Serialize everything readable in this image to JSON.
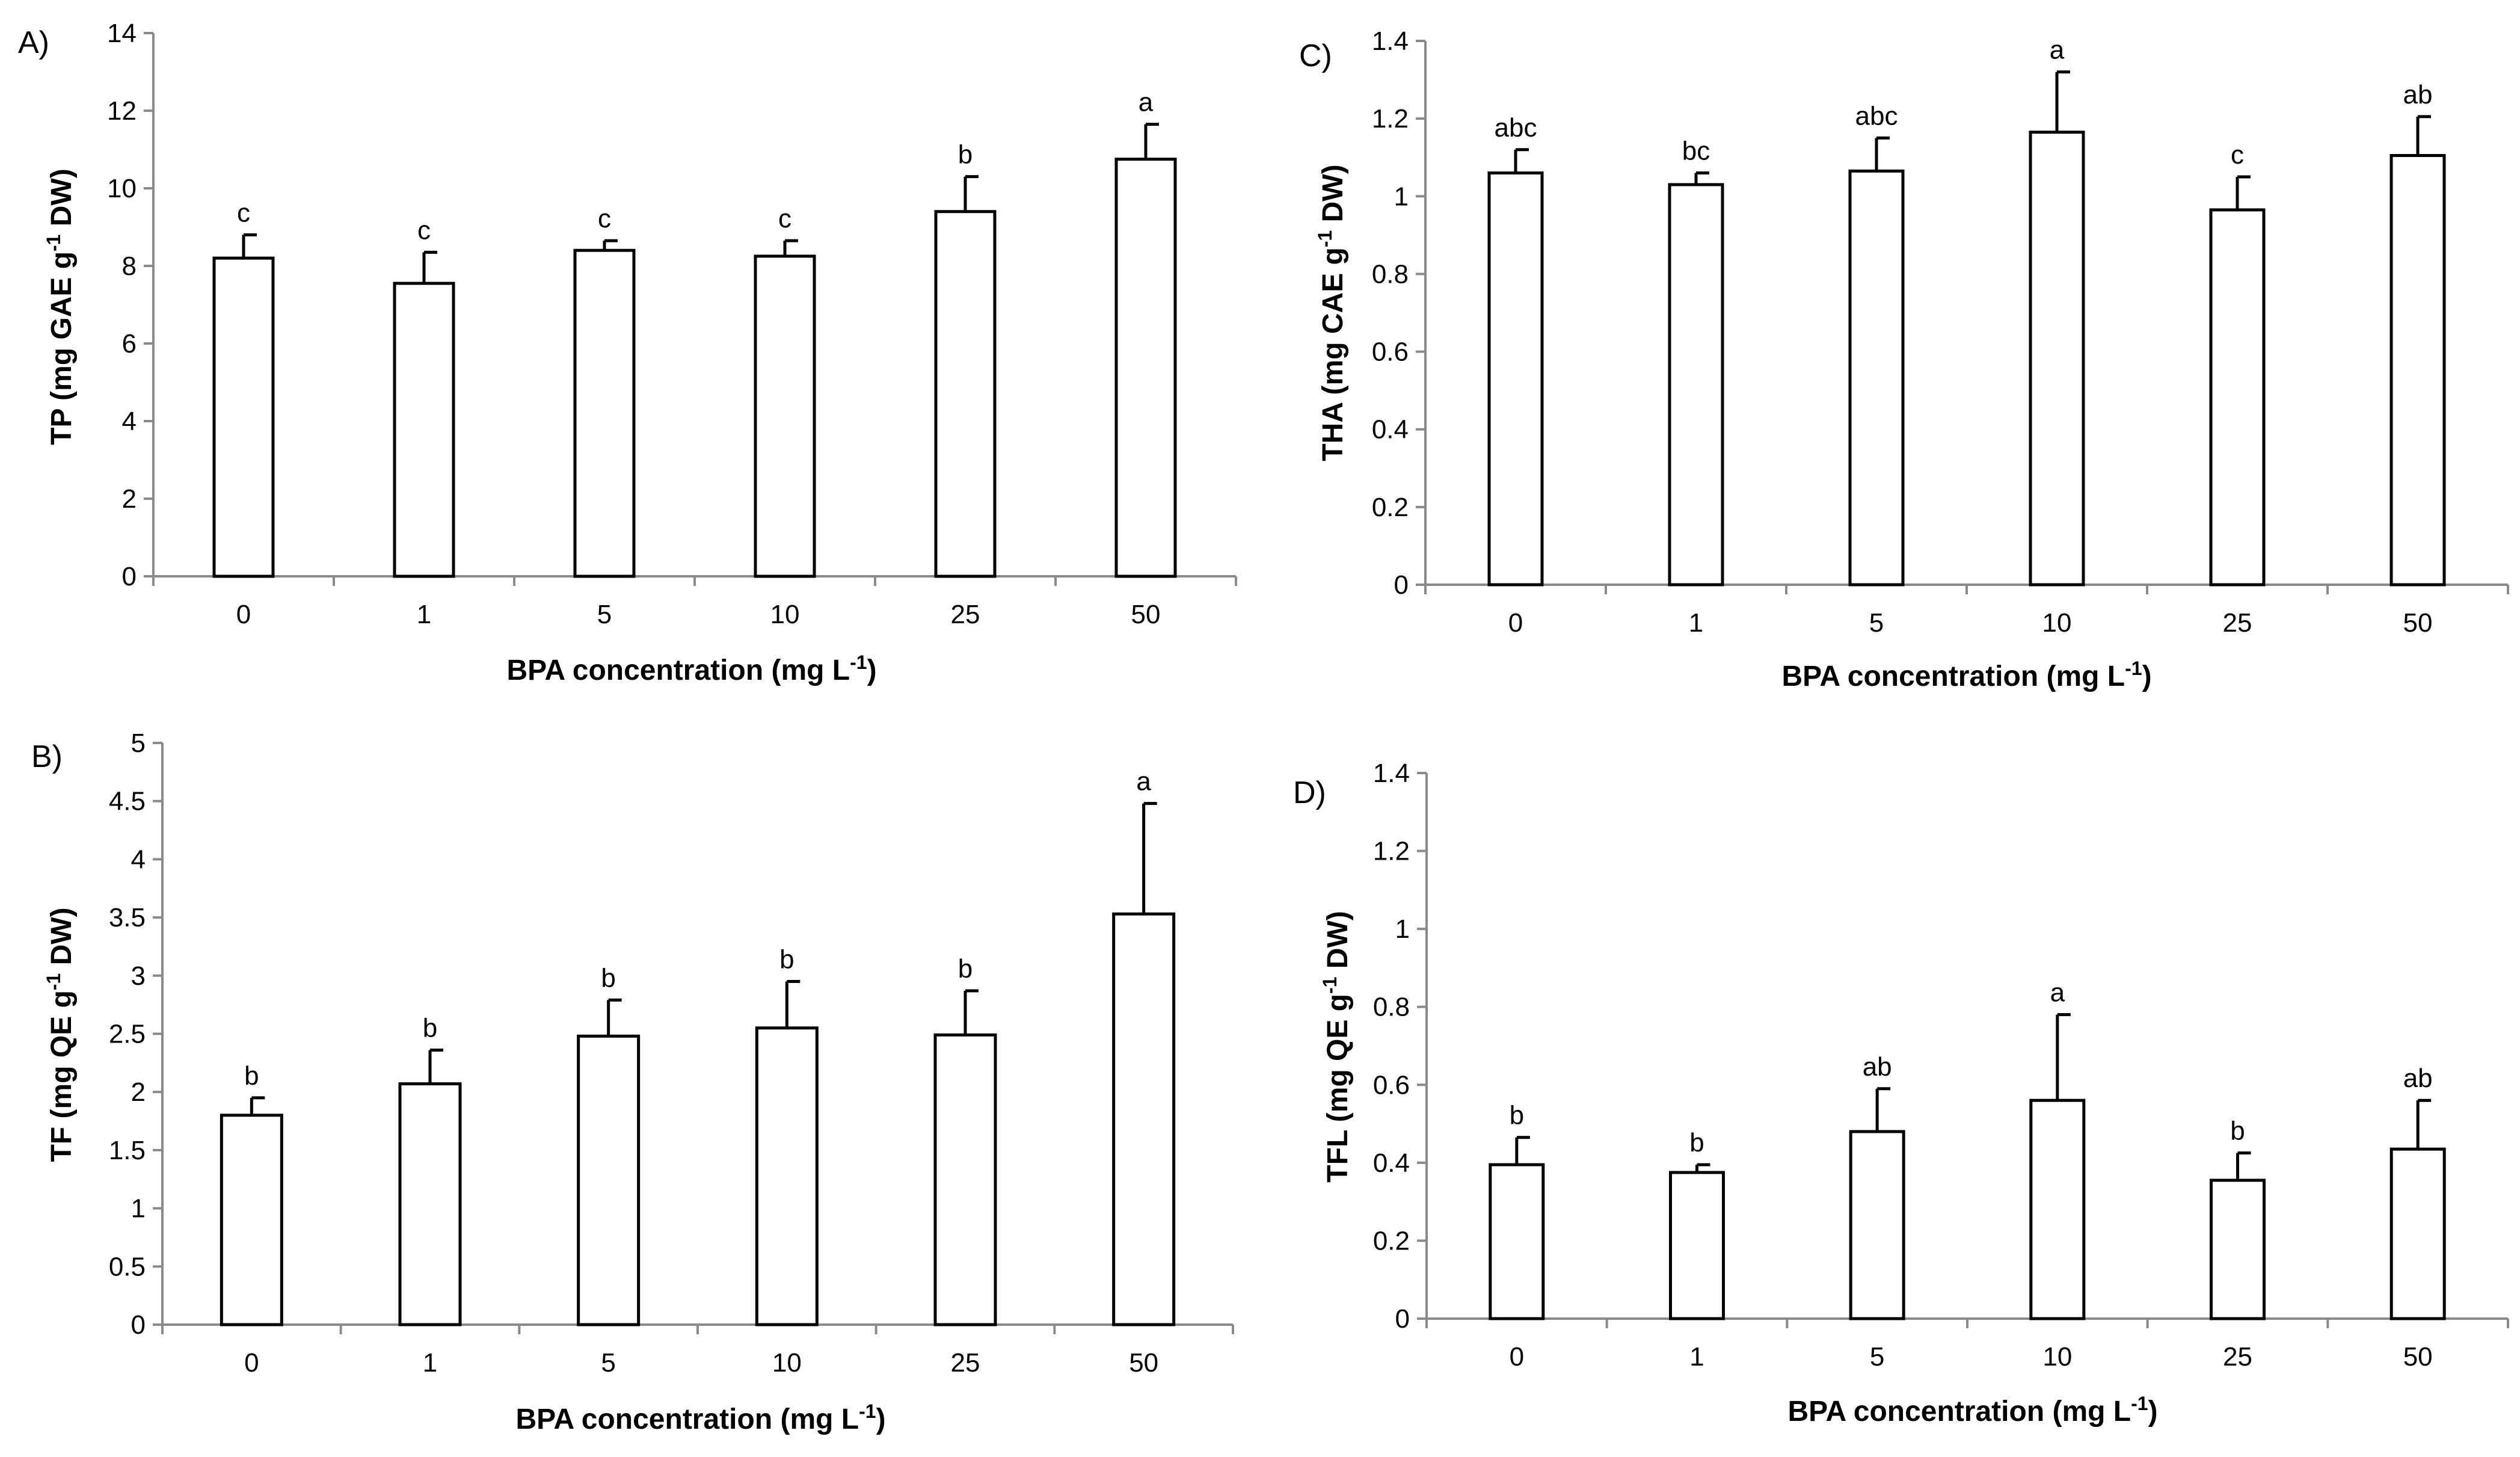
{
  "chart_data": [
    {
      "type": "bar",
      "panel": "A)",
      "categories": [
        "0",
        "1",
        "5",
        "10",
        "25",
        "50"
      ],
      "values": [
        8.2,
        7.55,
        8.4,
        8.25,
        9.4,
        10.75
      ],
      "errors": [
        0.6,
        0.8,
        0.25,
        0.4,
        0.9,
        0.9
      ],
      "significance": [
        "c",
        "c",
        "c",
        "c",
        "b",
        "a"
      ],
      "ylim": [
        0,
        14
      ],
      "yticks": [
        "0",
        "2",
        "4",
        "6",
        "8",
        "10",
        "12",
        "14"
      ],
      "ylabel_main": "TP (mg GAE g",
      "ylabel_sup": "-1",
      "ylabel_end": " DW)",
      "xlabel_main": "BPA concentration (mg L",
      "xlabel_sup": "-1",
      "xlabel_end": ")"
    },
    {
      "type": "bar",
      "panel": "B)",
      "categories": [
        "0",
        "1",
        "5",
        "10",
        "25",
        "50"
      ],
      "values": [
        1.8,
        2.07,
        2.48,
        2.55,
        2.49,
        3.53
      ],
      "errors": [
        0.15,
        0.29,
        0.31,
        0.4,
        0.38,
        0.95
      ],
      "significance": [
        "b",
        "b",
        "b",
        "b",
        "b",
        "a"
      ],
      "ylim": [
        0,
        5
      ],
      "yticks": [
        "0",
        "0.5",
        "1",
        "1.5",
        "2",
        "2.5",
        "3",
        "3.5",
        "4",
        "4.5",
        "5"
      ],
      "ylabel_main": "TF (mg QE g",
      "ylabel_sup": "-1",
      "ylabel_end": " DW)",
      "xlabel_main": "BPA concentration (mg L",
      "xlabel_sup": "-1",
      "xlabel_end": ")"
    },
    {
      "type": "bar",
      "panel": "C)",
      "categories": [
        "0",
        "1",
        "5",
        "10",
        "25",
        "50"
      ],
      "values": [
        1.06,
        1.03,
        1.065,
        1.165,
        0.965,
        1.105
      ],
      "errors": [
        0.06,
        0.03,
        0.085,
        0.155,
        0.085,
        0.1
      ],
      "significance": [
        "abc",
        "bc",
        "abc",
        "a",
        "c",
        "ab"
      ],
      "ylim": [
        0,
        1.4
      ],
      "yticks": [
        "0",
        "0.2",
        "0.4",
        "0.6",
        "0.8",
        "1",
        "1.2",
        "1.4"
      ],
      "ylabel_main": "THA (mg CAE g",
      "ylabel_sup": "-1",
      "ylabel_end": " DW)",
      "xlabel_main": "BPA concentration (mg L",
      "xlabel_sup": "-1",
      "xlabel_end": ")"
    },
    {
      "type": "bar",
      "panel": "D)",
      "categories": [
        "0",
        "1",
        "5",
        "10",
        "25",
        "50"
      ],
      "values": [
        0.395,
        0.375,
        0.48,
        0.56,
        0.355,
        0.435
      ],
      "errors": [
        0.07,
        0.02,
        0.11,
        0.22,
        0.07,
        0.125
      ],
      "significance": [
        "b",
        "b",
        "ab",
        "a",
        "b",
        "ab"
      ],
      "ylim": [
        0,
        1.4
      ],
      "yticks": [
        "0",
        "0.2",
        "0.4",
        "0.6",
        "0.8",
        "1",
        "1.2",
        "1.4"
      ],
      "ylabel_main": "TFL (mg QE g",
      "ylabel_sup": "-1",
      "ylabel_end": " DW)",
      "xlabel_main": "BPA concentration (mg L",
      "xlabel_sup": "-1",
      "xlabel_end": ")"
    }
  ]
}
